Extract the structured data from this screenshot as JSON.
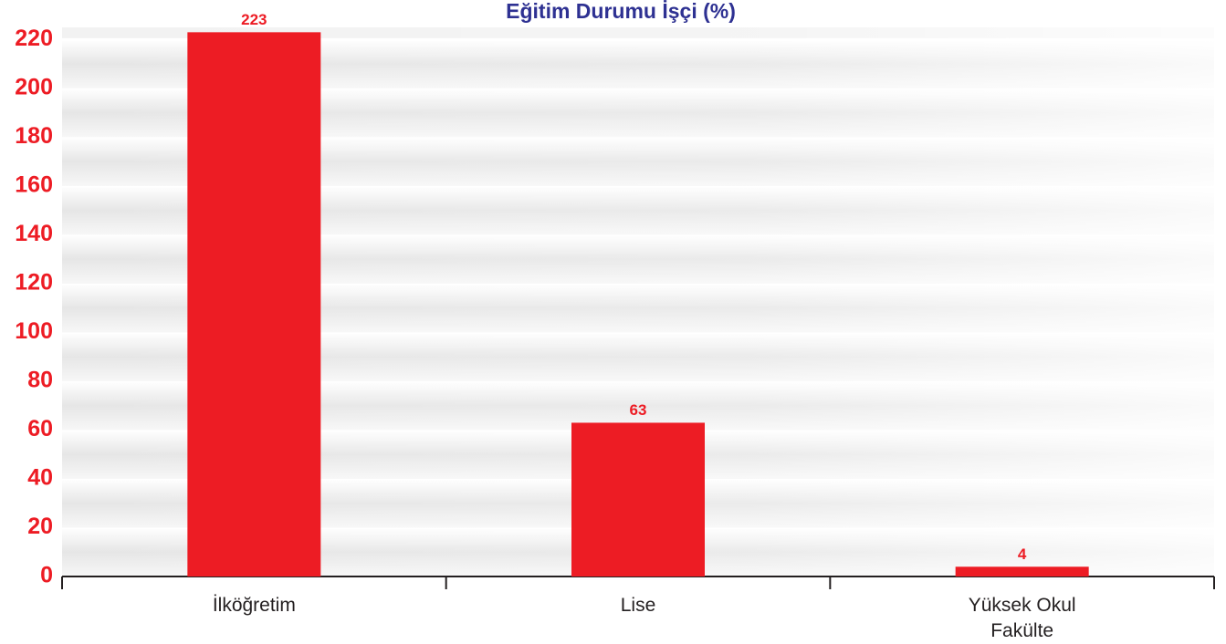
{
  "chart_data": {
    "type": "bar",
    "title": "Eğitim Durumu İşçi (%)",
    "categories": [
      "İlköğretim",
      "Lise",
      "Yüksek Okul\nFakülte"
    ],
    "values": [
      223,
      63,
      4
    ],
    "color": "#ed1c24",
    "ylim": [
      0,
      225
    ],
    "yticks": [
      0,
      20,
      40,
      60,
      80,
      100,
      120,
      140,
      160,
      180,
      200,
      220
    ],
    "grid": true
  }
}
